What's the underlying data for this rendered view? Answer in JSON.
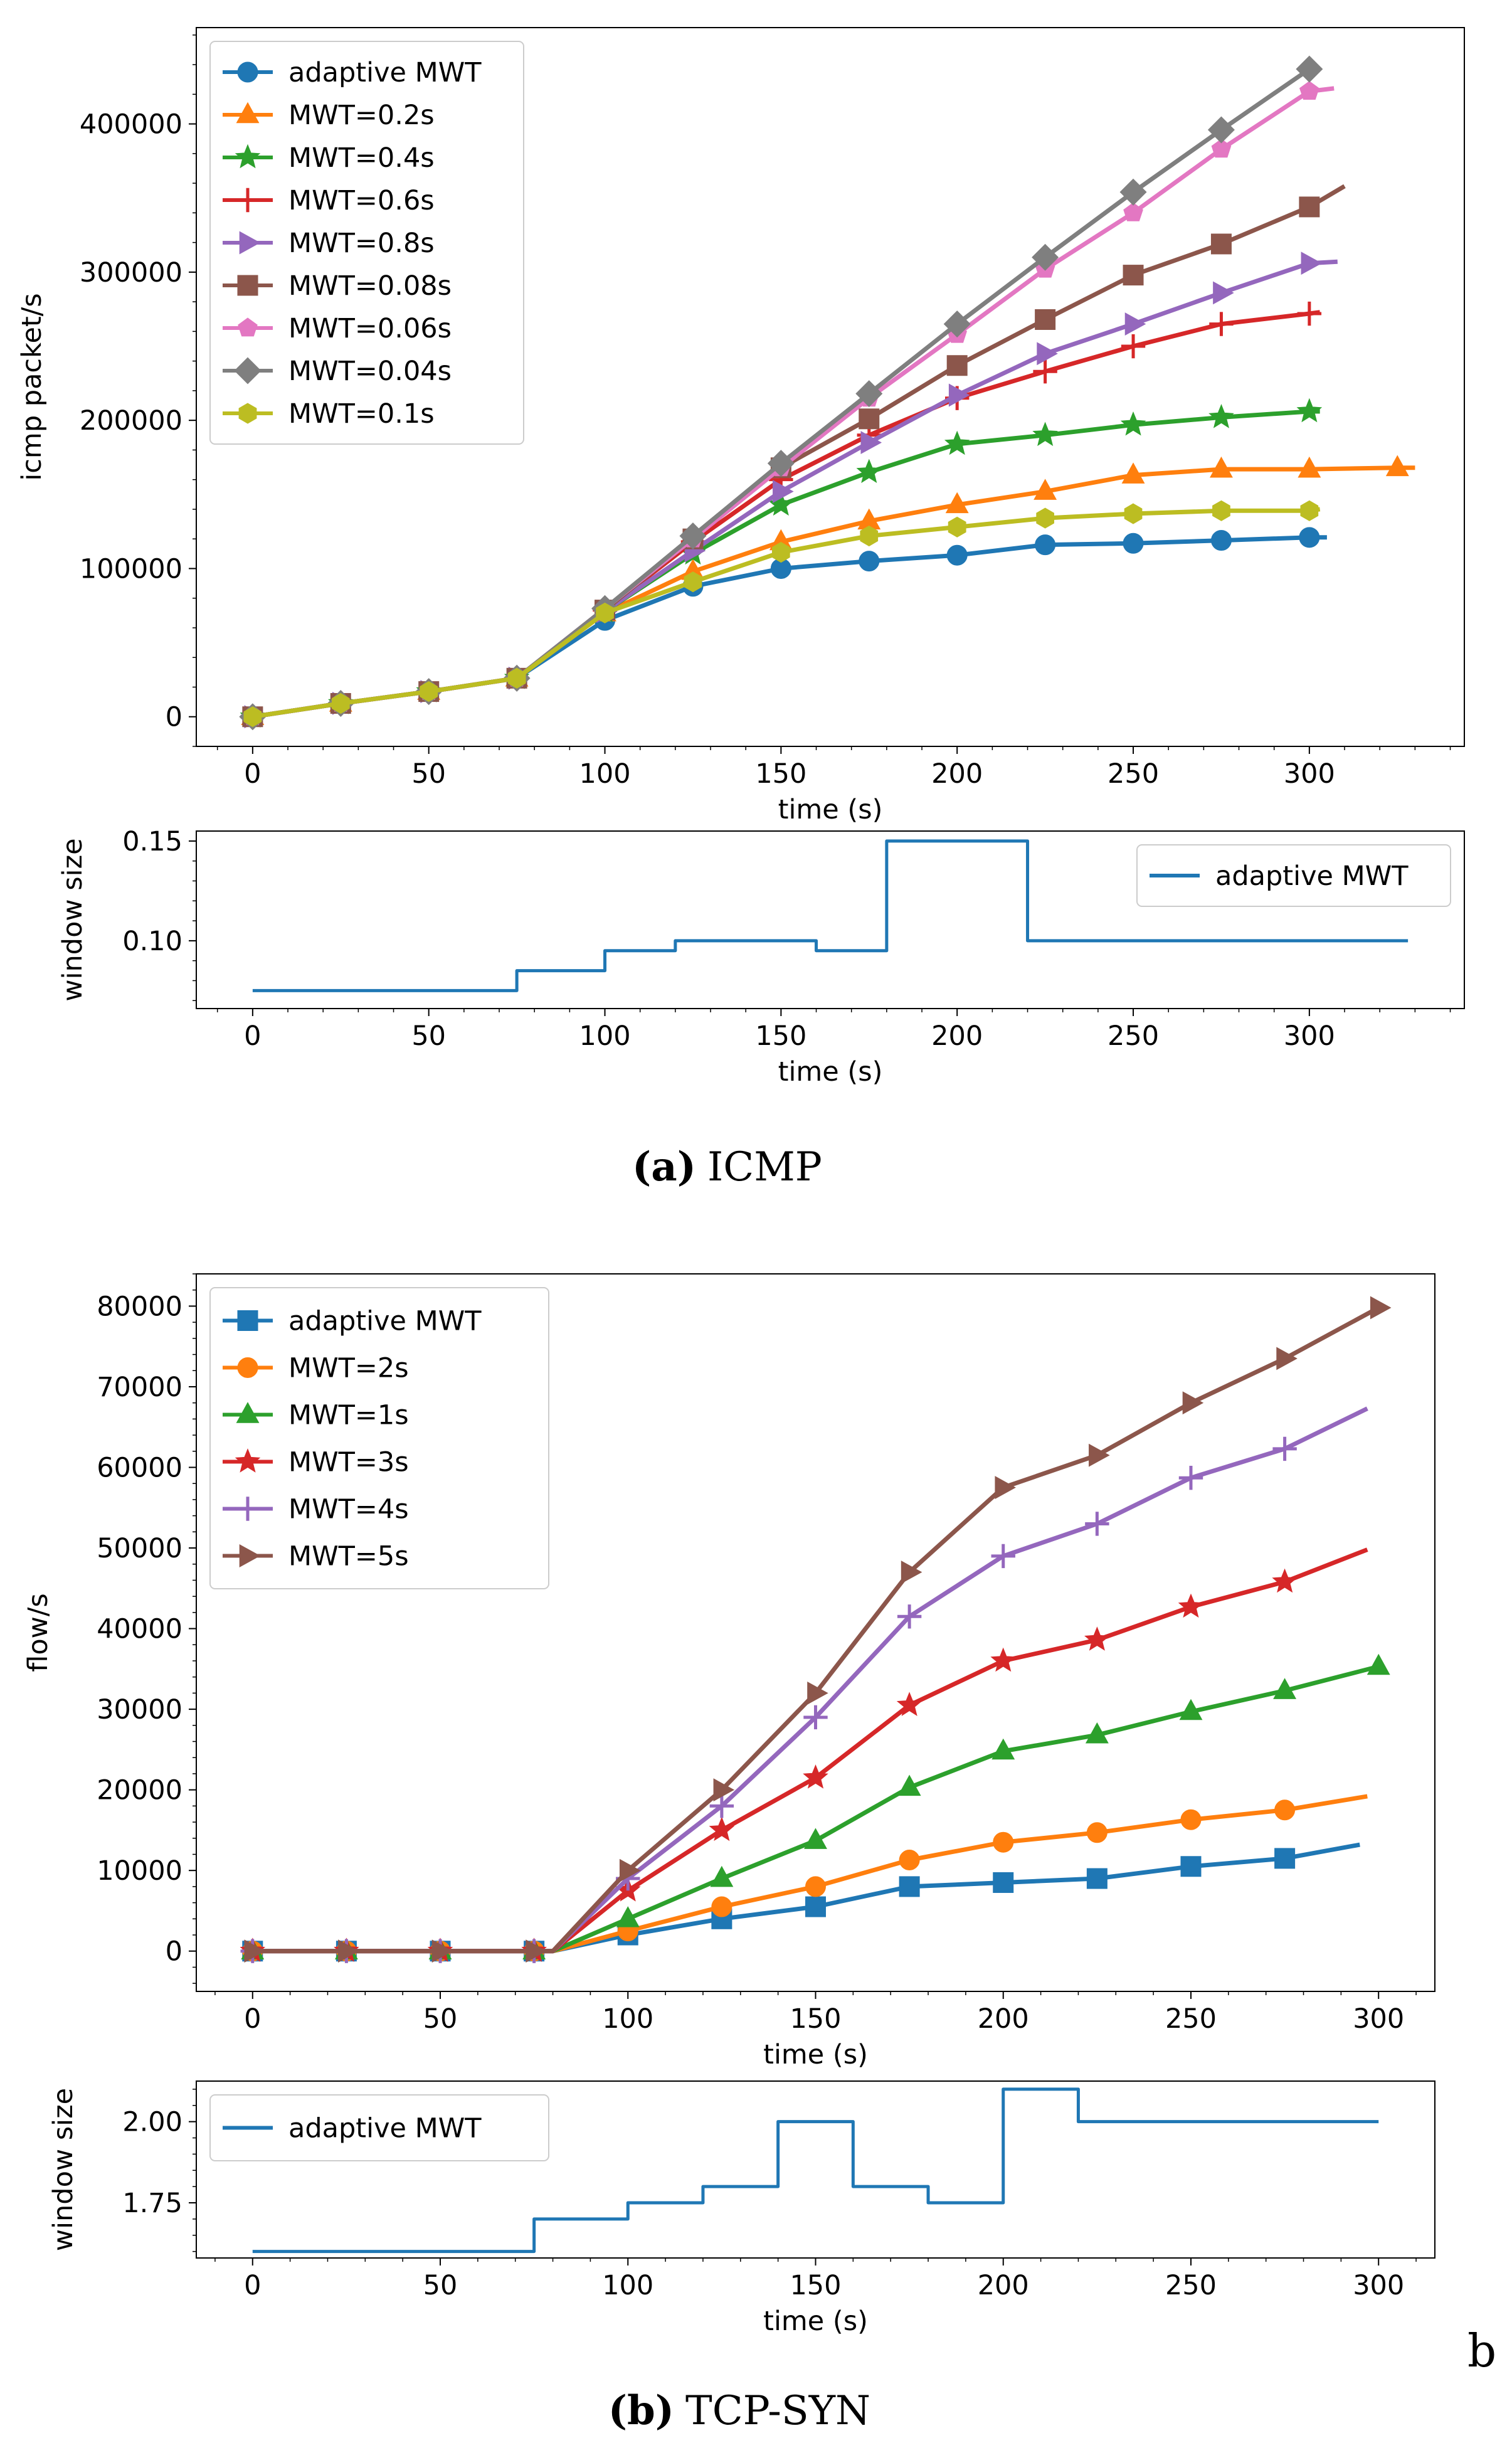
{
  "chart_data": [
    {
      "id": "icmp_main",
      "type": "line",
      "title": "",
      "xlabel": "time (s)",
      "ylabel": "icmp packet/s",
      "xlim": [
        -16,
        344
      ],
      "ylim": [
        -20000,
        465000
      ],
      "xticks": [
        0,
        50,
        100,
        150,
        200,
        250,
        300
      ],
      "yticks": [
        0,
        100000,
        200000,
        300000,
        400000
      ],
      "legend_position": "upper-left",
      "series": [
        {
          "name": "adaptive MWT",
          "color": "#1f77b4",
          "marker": "circle",
          "x": [
            0,
            25,
            50,
            75,
            100,
            125,
            150,
            175,
            200,
            225,
            250,
            275,
            300,
            305
          ],
          "y": [
            0,
            9000,
            17000,
            26000,
            65000,
            88000,
            100000,
            105000,
            109000,
            116000,
            117000,
            119000,
            121000,
            121000
          ]
        },
        {
          "name": "MWT=0.2s",
          "color": "#ff7f0e",
          "marker": "triangle-up",
          "x": [
            0,
            25,
            50,
            75,
            100,
            125,
            150,
            175,
            200,
            225,
            250,
            275,
            300,
            325,
            330
          ],
          "y": [
            0,
            9000,
            17000,
            26000,
            70000,
            98000,
            118000,
            132000,
            143000,
            152000,
            163000,
            167000,
            167000,
            168000,
            168000
          ]
        },
        {
          "name": "MWT=0.4s",
          "color": "#2ca02c",
          "marker": "star",
          "x": [
            0,
            25,
            50,
            75,
            100,
            125,
            150,
            175,
            200,
            225,
            250,
            275,
            300,
            303
          ],
          "y": [
            0,
            9000,
            17000,
            26000,
            71000,
            110000,
            143000,
            165000,
            184000,
            190000,
            197000,
            202000,
            206000,
            206000
          ]
        },
        {
          "name": "MWT=0.6s",
          "color": "#d62728",
          "marker": "plus",
          "x": [
            0,
            25,
            50,
            75,
            100,
            125,
            150,
            175,
            200,
            225,
            250,
            275,
            300,
            303
          ],
          "y": [
            0,
            9000,
            17000,
            26000,
            72000,
            118000,
            160000,
            190000,
            215000,
            233000,
            250000,
            265000,
            272000,
            273000
          ]
        },
        {
          "name": "MWT=0.8s",
          "color": "#9467bd",
          "marker": "triangle-right",
          "x": [
            0,
            25,
            50,
            75,
            100,
            125,
            150,
            175,
            200,
            225,
            250,
            275,
            300,
            308
          ],
          "y": [
            0,
            9000,
            17000,
            26000,
            71000,
            112000,
            152000,
            185000,
            217000,
            245000,
            265000,
            286000,
            306000,
            307000
          ]
        },
        {
          "name": "MWT=0.08s",
          "color": "#8c564b",
          "marker": "square",
          "x": [
            0,
            25,
            50,
            75,
            100,
            125,
            150,
            175,
            200,
            225,
            250,
            275,
            300,
            310
          ],
          "y": [
            0,
            9000,
            17000,
            26000,
            72000,
            120000,
            168000,
            201000,
            237000,
            268000,
            298000,
            319000,
            344000,
            358000
          ]
        },
        {
          "name": "MWT=0.06s",
          "color": "#e377c2",
          "marker": "pentagon",
          "x": [
            0,
            25,
            50,
            75,
            100,
            125,
            150,
            175,
            200,
            225,
            250,
            275,
            300,
            307
          ],
          "y": [
            0,
            9000,
            17000,
            26000,
            73000,
            120000,
            168000,
            215000,
            258000,
            302000,
            340000,
            383000,
            422000,
            424000
          ]
        },
        {
          "name": "MWT=0.04s",
          "color": "#7f7f7f",
          "marker": "diamond",
          "x": [
            0,
            25,
            50,
            75,
            100,
            125,
            150,
            175,
            200,
            225,
            250,
            275,
            300
          ],
          "y": [
            0,
            9000,
            17000,
            26000,
            73000,
            122000,
            171000,
            218000,
            265000,
            310000,
            354000,
            396000,
            437000
          ]
        },
        {
          "name": "MWT=0.1s",
          "color": "#bcbd22",
          "marker": "hexagon",
          "x": [
            0,
            25,
            50,
            75,
            100,
            125,
            150,
            175,
            200,
            225,
            250,
            275,
            300,
            303
          ],
          "y": [
            0,
            9000,
            17000,
            26000,
            70000,
            91000,
            111000,
            122000,
            128000,
            134000,
            137000,
            139000,
            139000,
            140000
          ]
        }
      ]
    },
    {
      "id": "icmp_window",
      "type": "line",
      "xlabel": "time (s)",
      "ylabel": "window size",
      "xlim": [
        -16,
        344
      ],
      "ylim": [
        0.066,
        0.155
      ],
      "xticks": [
        0,
        50,
        100,
        150,
        200,
        250,
        300
      ],
      "yticks": [
        0.1,
        0.15
      ],
      "ytick_labels": [
        "0.10",
        "0.15"
      ],
      "legend_position": "upper-right",
      "series": [
        {
          "name": "adaptive MWT",
          "color": "#1f77b4",
          "step": true,
          "x": [
            0,
            75,
            100,
            120,
            160,
            180,
            220,
            328
          ],
          "y": [
            0.075,
            0.085,
            0.095,
            0.1,
            0.095,
            0.15,
            0.1,
            0.1
          ]
        }
      ]
    },
    {
      "id": "syn_main",
      "type": "line",
      "xlabel": "time (s)",
      "ylabel": "flow/s",
      "xlim": [
        -15,
        315
      ],
      "ylim": [
        -5000,
        84000
      ],
      "xticks": [
        0,
        50,
        100,
        150,
        200,
        250,
        300
      ],
      "yticks": [
        0,
        10000,
        20000,
        30000,
        40000,
        50000,
        60000,
        70000,
        80000
      ],
      "legend_position": "upper-left",
      "series": [
        {
          "name": "adaptive MWT",
          "color": "#1f77b4",
          "marker": "square",
          "x": [
            0,
            25,
            50,
            75,
            80,
            100,
            125,
            150,
            175,
            200,
            225,
            250,
            275,
            295
          ],
          "y": [
            0,
            0,
            0,
            0,
            0,
            2000,
            4000,
            5500,
            8000,
            8500,
            9000,
            10500,
            11500,
            13200
          ]
        },
        {
          "name": "MWT=2s",
          "color": "#ff7f0e",
          "marker": "circle",
          "x": [
            0,
            25,
            50,
            75,
            80,
            100,
            125,
            150,
            175,
            200,
            225,
            250,
            275,
            297
          ],
          "y": [
            0,
            0,
            0,
            0,
            0,
            2500,
            5500,
            8000,
            11300,
            13500,
            14700,
            16300,
            17500,
            19200
          ]
        },
        {
          "name": "MWT=1s",
          "color": "#2ca02c",
          "marker": "triangle-up",
          "x": [
            0,
            25,
            50,
            75,
            80,
            100,
            125,
            150,
            175,
            200,
            225,
            250,
            275,
            300
          ],
          "y": [
            0,
            0,
            0,
            0,
            0,
            4000,
            9000,
            13700,
            20300,
            24800,
            26800,
            29700,
            32300,
            35300
          ]
        },
        {
          "name": "MWT=3s",
          "color": "#d62728",
          "marker": "star",
          "x": [
            0,
            25,
            50,
            75,
            80,
            100,
            125,
            150,
            175,
            200,
            225,
            250,
            275,
            297
          ],
          "y": [
            0,
            0,
            0,
            0,
            0,
            7500,
            15000,
            21500,
            30500,
            36000,
            38600,
            42700,
            45800,
            49800
          ]
        },
        {
          "name": "MWT=4s",
          "color": "#9467bd",
          "marker": "plus",
          "x": [
            0,
            25,
            50,
            75,
            80,
            100,
            125,
            150,
            175,
            200,
            225,
            250,
            275,
            297
          ],
          "y": [
            0,
            0,
            0,
            0,
            0,
            9000,
            18000,
            29000,
            41500,
            49000,
            53000,
            58700,
            62300,
            67300
          ]
        },
        {
          "name": "MWT=5s",
          "color": "#8c564b",
          "marker": "triangle-right",
          "x": [
            0,
            25,
            50,
            75,
            80,
            100,
            125,
            150,
            175,
            200,
            225,
            250,
            275,
            300
          ],
          "y": [
            0,
            0,
            0,
            0,
            0,
            10000,
            20000,
            32000,
            47000,
            57500,
            61500,
            68000,
            73500,
            79800
          ]
        }
      ]
    },
    {
      "id": "syn_window",
      "type": "line",
      "xlabel": "time (s)",
      "ylabel": "window size",
      "xlim": [
        -15,
        315
      ],
      "ylim": [
        1.58,
        2.125
      ],
      "xticks": [
        0,
        50,
        100,
        150,
        200,
        250,
        300
      ],
      "yticks": [
        1.75,
        2.0
      ],
      "ytick_labels": [
        "1.75",
        "2.00"
      ],
      "legend_position": "upper-left",
      "series": [
        {
          "name": "adaptive MWT",
          "color": "#1f77b4",
          "step": true,
          "x": [
            0,
            75,
            100,
            120,
            140,
            160,
            180,
            200,
            220,
            300
          ],
          "y": [
            1.6,
            1.7,
            1.75,
            1.8,
            2.0,
            1.8,
            1.75,
            2.1,
            2.0,
            2.0
          ]
        }
      ]
    }
  ],
  "captions": {
    "a": {
      "label": "(a)",
      "text": "ICMP"
    },
    "b": {
      "label": "(b)",
      "text": "TCP-SYN"
    },
    "side_letter": "b"
  }
}
